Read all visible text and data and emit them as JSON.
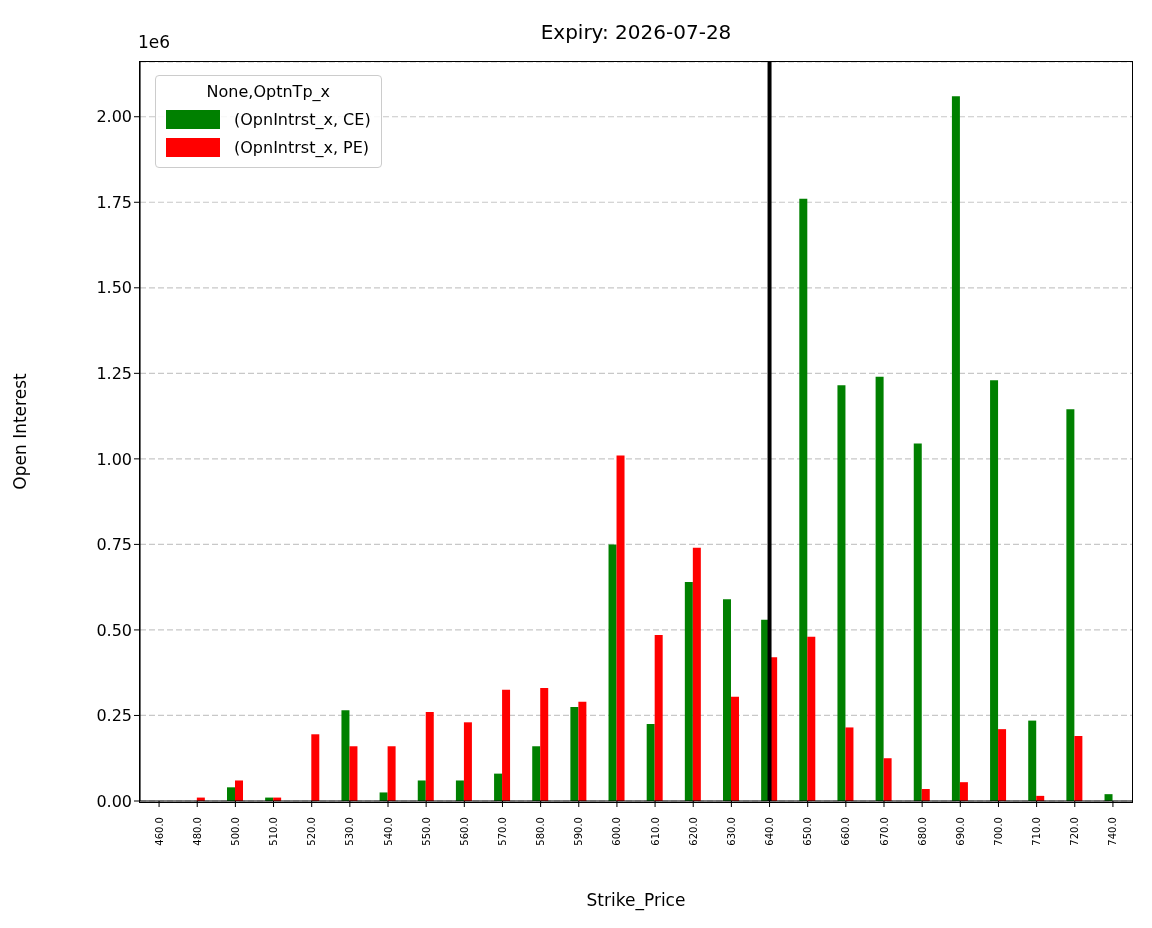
{
  "chart_data": {
    "type": "bar",
    "title": "Expiry: 2026-07-28",
    "xlabel": "Strike_Price",
    "ylabel": "Open Interest",
    "legend_title": "None,OptnTp_x",
    "annotations": [
      "1e6"
    ],
    "categories": [
      "460.0",
      "480.0",
      "500.0",
      "510.0",
      "520.0",
      "530.0",
      "540.0",
      "550.0",
      "560.0",
      "570.0",
      "580.0",
      "590.0",
      "600.0",
      "610.0",
      "620.0",
      "630.0",
      "640.0",
      "650.0",
      "660.0",
      "670.0",
      "680.0",
      "690.0",
      "700.0",
      "710.0",
      "720.0",
      "740.0"
    ],
    "series": [
      {
        "name": "(OpnIntrst_x, CE)",
        "color": "#008000",
        "values": [
          0,
          null,
          0.04,
          0.01,
          0,
          0.265,
          0.025,
          0.06,
          0.06,
          0.08,
          0.16,
          0.275,
          0.75,
          0.225,
          0.64,
          0.59,
          0.53,
          1.76,
          1.215,
          1.24,
          1.045,
          2.06,
          1.23,
          0.235,
          1.145,
          0.02
        ]
      },
      {
        "name": "(OpnIntrst_x, PE)",
        "color": "#ff0000",
        "values": [
          0,
          0.01,
          0.06,
          0.01,
          0.195,
          0.16,
          0.16,
          0.26,
          0.23,
          0.325,
          0.33,
          0.29,
          1.01,
          0.485,
          0.74,
          0.305,
          0.42,
          0.48,
          0.215,
          0.125,
          0.035,
          0.055,
          0.21,
          0.015,
          0.19,
          0
        ]
      }
    ],
    "ylim": [
      0,
      2.16
    ],
    "yticks": [
      {
        "value": 0,
        "label": "0.00"
      },
      0.25,
      {
        "value": 0.5,
        "label": "0.50"
      },
      0.75,
      {
        "value": 1,
        "label": "1.00"
      },
      1.25,
      {
        "value": 1.5,
        "label": "1.50"
      },
      1.75,
      {
        "value": 2,
        "label": "2.00"
      }
    ],
    "grid": "y",
    "legend": "top left",
    "ref_lines": [
      {
        "axis": "x",
        "value": "640.0",
        "color": "#000000"
      }
    ]
  }
}
